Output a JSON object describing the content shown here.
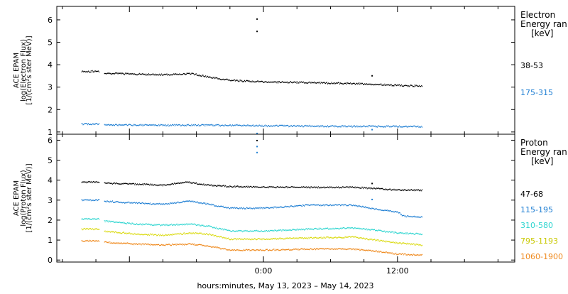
{
  "chart_data": [
    {
      "type": "scatter",
      "panel": "electron",
      "ylabel_lines": [
        "ACE EPAM",
        "log(Electron Flux)",
        "[1/(cm²s ster MeV)]"
      ],
      "legend_title_lines": [
        "Electron",
        "Energy ran",
        "[keV]"
      ],
      "ylim": [
        0.9,
        6.6
      ],
      "yticks": [
        1,
        2,
        3,
        4,
        5,
        6
      ],
      "series": [
        {
          "name": "38-53",
          "color": "#000000",
          "points": [
            [
              -16.3,
              3.7
            ],
            [
              -14.7,
              3.7
            ],
            [
              -14.3,
              3.62
            ],
            [
              -11.5,
              3.58
            ],
            [
              -9.0,
              3.55
            ],
            [
              -6.5,
              3.6
            ],
            [
              -5.0,
              3.45
            ],
            [
              -3.0,
              3.3
            ],
            [
              0,
              3.23
            ],
            [
              4,
              3.2
            ],
            [
              8,
              3.16
            ],
            [
              10,
              3.12
            ],
            [
              13,
              3.06
            ],
            [
              14.2,
              3.05
            ]
          ],
          "outliers": [
            [
              -0.6,
              6.05
            ],
            [
              -0.6,
              5.5
            ],
            [
              9.7,
              3.52
            ]
          ]
        },
        {
          "name": "175-315",
          "color": "#1f7fd3",
          "points": [
            [
              -16.3,
              1.35
            ],
            [
              -14.7,
              1.35
            ],
            [
              -14.3,
              1.32
            ],
            [
              -9.0,
              1.3
            ],
            [
              -3.0,
              1.3
            ],
            [
              0,
              1.27
            ],
            [
              4,
              1.26
            ],
            [
              8,
              1.25
            ],
            [
              12,
              1.25
            ],
            [
              14.2,
              1.24
            ]
          ],
          "outliers": [
            [
              -0.6,
              0.95
            ],
            [
              9.7,
              1.12
            ]
          ]
        }
      ]
    },
    {
      "type": "scatter",
      "panel": "proton",
      "ylabel_lines": [
        "ACE EPAM",
        "log(Proton Flux)",
        "[1/(cm²s ster MeV)]"
      ],
      "legend_title_lines": [
        "Proton",
        "Energy ran",
        "[keV]"
      ],
      "ylim": [
        -0.1,
        6.3
      ],
      "yticks": [
        0,
        1,
        2,
        3,
        4,
        5,
        6
      ],
      "xlabel": "hours:minutes, May 13, 2023 – May 14, 2023",
      "xtick_labels": [
        "0:00",
        "12:00"
      ],
      "series": [
        {
          "name": "47-68",
          "color": "#000000",
          "points": [
            [
              -16.3,
              3.9
            ],
            [
              -14.7,
              3.9
            ],
            [
              -14.3,
              3.85
            ],
            [
              -11.5,
              3.8
            ],
            [
              -9.0,
              3.75
            ],
            [
              -6.8,
              3.9
            ],
            [
              -5.0,
              3.75
            ],
            [
              -3.0,
              3.68
            ],
            [
              0,
              3.65
            ],
            [
              4,
              3.64
            ],
            [
              8,
              3.64
            ],
            [
              10,
              3.58
            ],
            [
              12,
              3.5
            ],
            [
              14.2,
              3.5
            ]
          ],
          "outliers": [
            [
              -0.6,
              6.0
            ],
            [
              9.7,
              3.85
            ]
          ]
        },
        {
          "name": "115-195",
          "color": "#1f7fd3",
          "points": [
            [
              -16.3,
              3.0
            ],
            [
              -14.7,
              3.0
            ],
            [
              -14.3,
              2.95
            ],
            [
              -11.5,
              2.85
            ],
            [
              -9.0,
              2.8
            ],
            [
              -6.5,
              2.95
            ],
            [
              -5.0,
              2.8
            ],
            [
              -3.0,
              2.6
            ],
            [
              0,
              2.6
            ],
            [
              4,
              2.75
            ],
            [
              8,
              2.75
            ],
            [
              10,
              2.55
            ],
            [
              12,
              2.4
            ],
            [
              12.5,
              2.2
            ],
            [
              14.2,
              2.15
            ]
          ],
          "outliers": [
            [
              -0.6,
              5.7
            ],
            [
              -0.6,
              5.4
            ],
            [
              9.7,
              3.05
            ]
          ]
        },
        {
          "name": "310-580",
          "color": "#2ed5d0",
          "points": [
            [
              -16.3,
              2.05
            ],
            [
              -14.7,
              2.05
            ],
            [
              -14.3,
              1.95
            ],
            [
              -11.5,
              1.8
            ],
            [
              -9.0,
              1.75
            ],
            [
              -6.5,
              1.8
            ],
            [
              -5.0,
              1.7
            ],
            [
              -3.0,
              1.45
            ],
            [
              0,
              1.45
            ],
            [
              4,
              1.55
            ],
            [
              8,
              1.6
            ],
            [
              10,
              1.5
            ],
            [
              12,
              1.35
            ],
            [
              14.2,
              1.3
            ]
          ],
          "outliers": []
        },
        {
          "name": "795-1193",
          "color": "#dada10",
          "points": [
            [
              -16.3,
              1.55
            ],
            [
              -14.7,
              1.55
            ],
            [
              -14.3,
              1.45
            ],
            [
              -11.5,
              1.3
            ],
            [
              -9.0,
              1.25
            ],
            [
              -6.5,
              1.35
            ],
            [
              -5.0,
              1.3
            ],
            [
              -3.0,
              1.05
            ],
            [
              0,
              1.05
            ],
            [
              4,
              1.1
            ],
            [
              8,
              1.15
            ],
            [
              10,
              1.0
            ],
            [
              12,
              0.85
            ],
            [
              14.2,
              0.75
            ]
          ],
          "outliers": []
        },
        {
          "name": "1060-1900",
          "color": "#ef8a1f",
          "points": [
            [
              -16.3,
              0.95
            ],
            [
              -14.7,
              0.95
            ],
            [
              -14.3,
              0.9
            ],
            [
              -11.5,
              0.8
            ],
            [
              -9.0,
              0.75
            ],
            [
              -6.5,
              0.8
            ],
            [
              -5.0,
              0.7
            ],
            [
              -3.0,
              0.5
            ],
            [
              0,
              0.5
            ],
            [
              4,
              0.55
            ],
            [
              8,
              0.55
            ],
            [
              10,
              0.45
            ],
            [
              12,
              0.3
            ],
            [
              14.2,
              0.25
            ]
          ],
          "outliers": []
        }
      ]
    }
  ]
}
